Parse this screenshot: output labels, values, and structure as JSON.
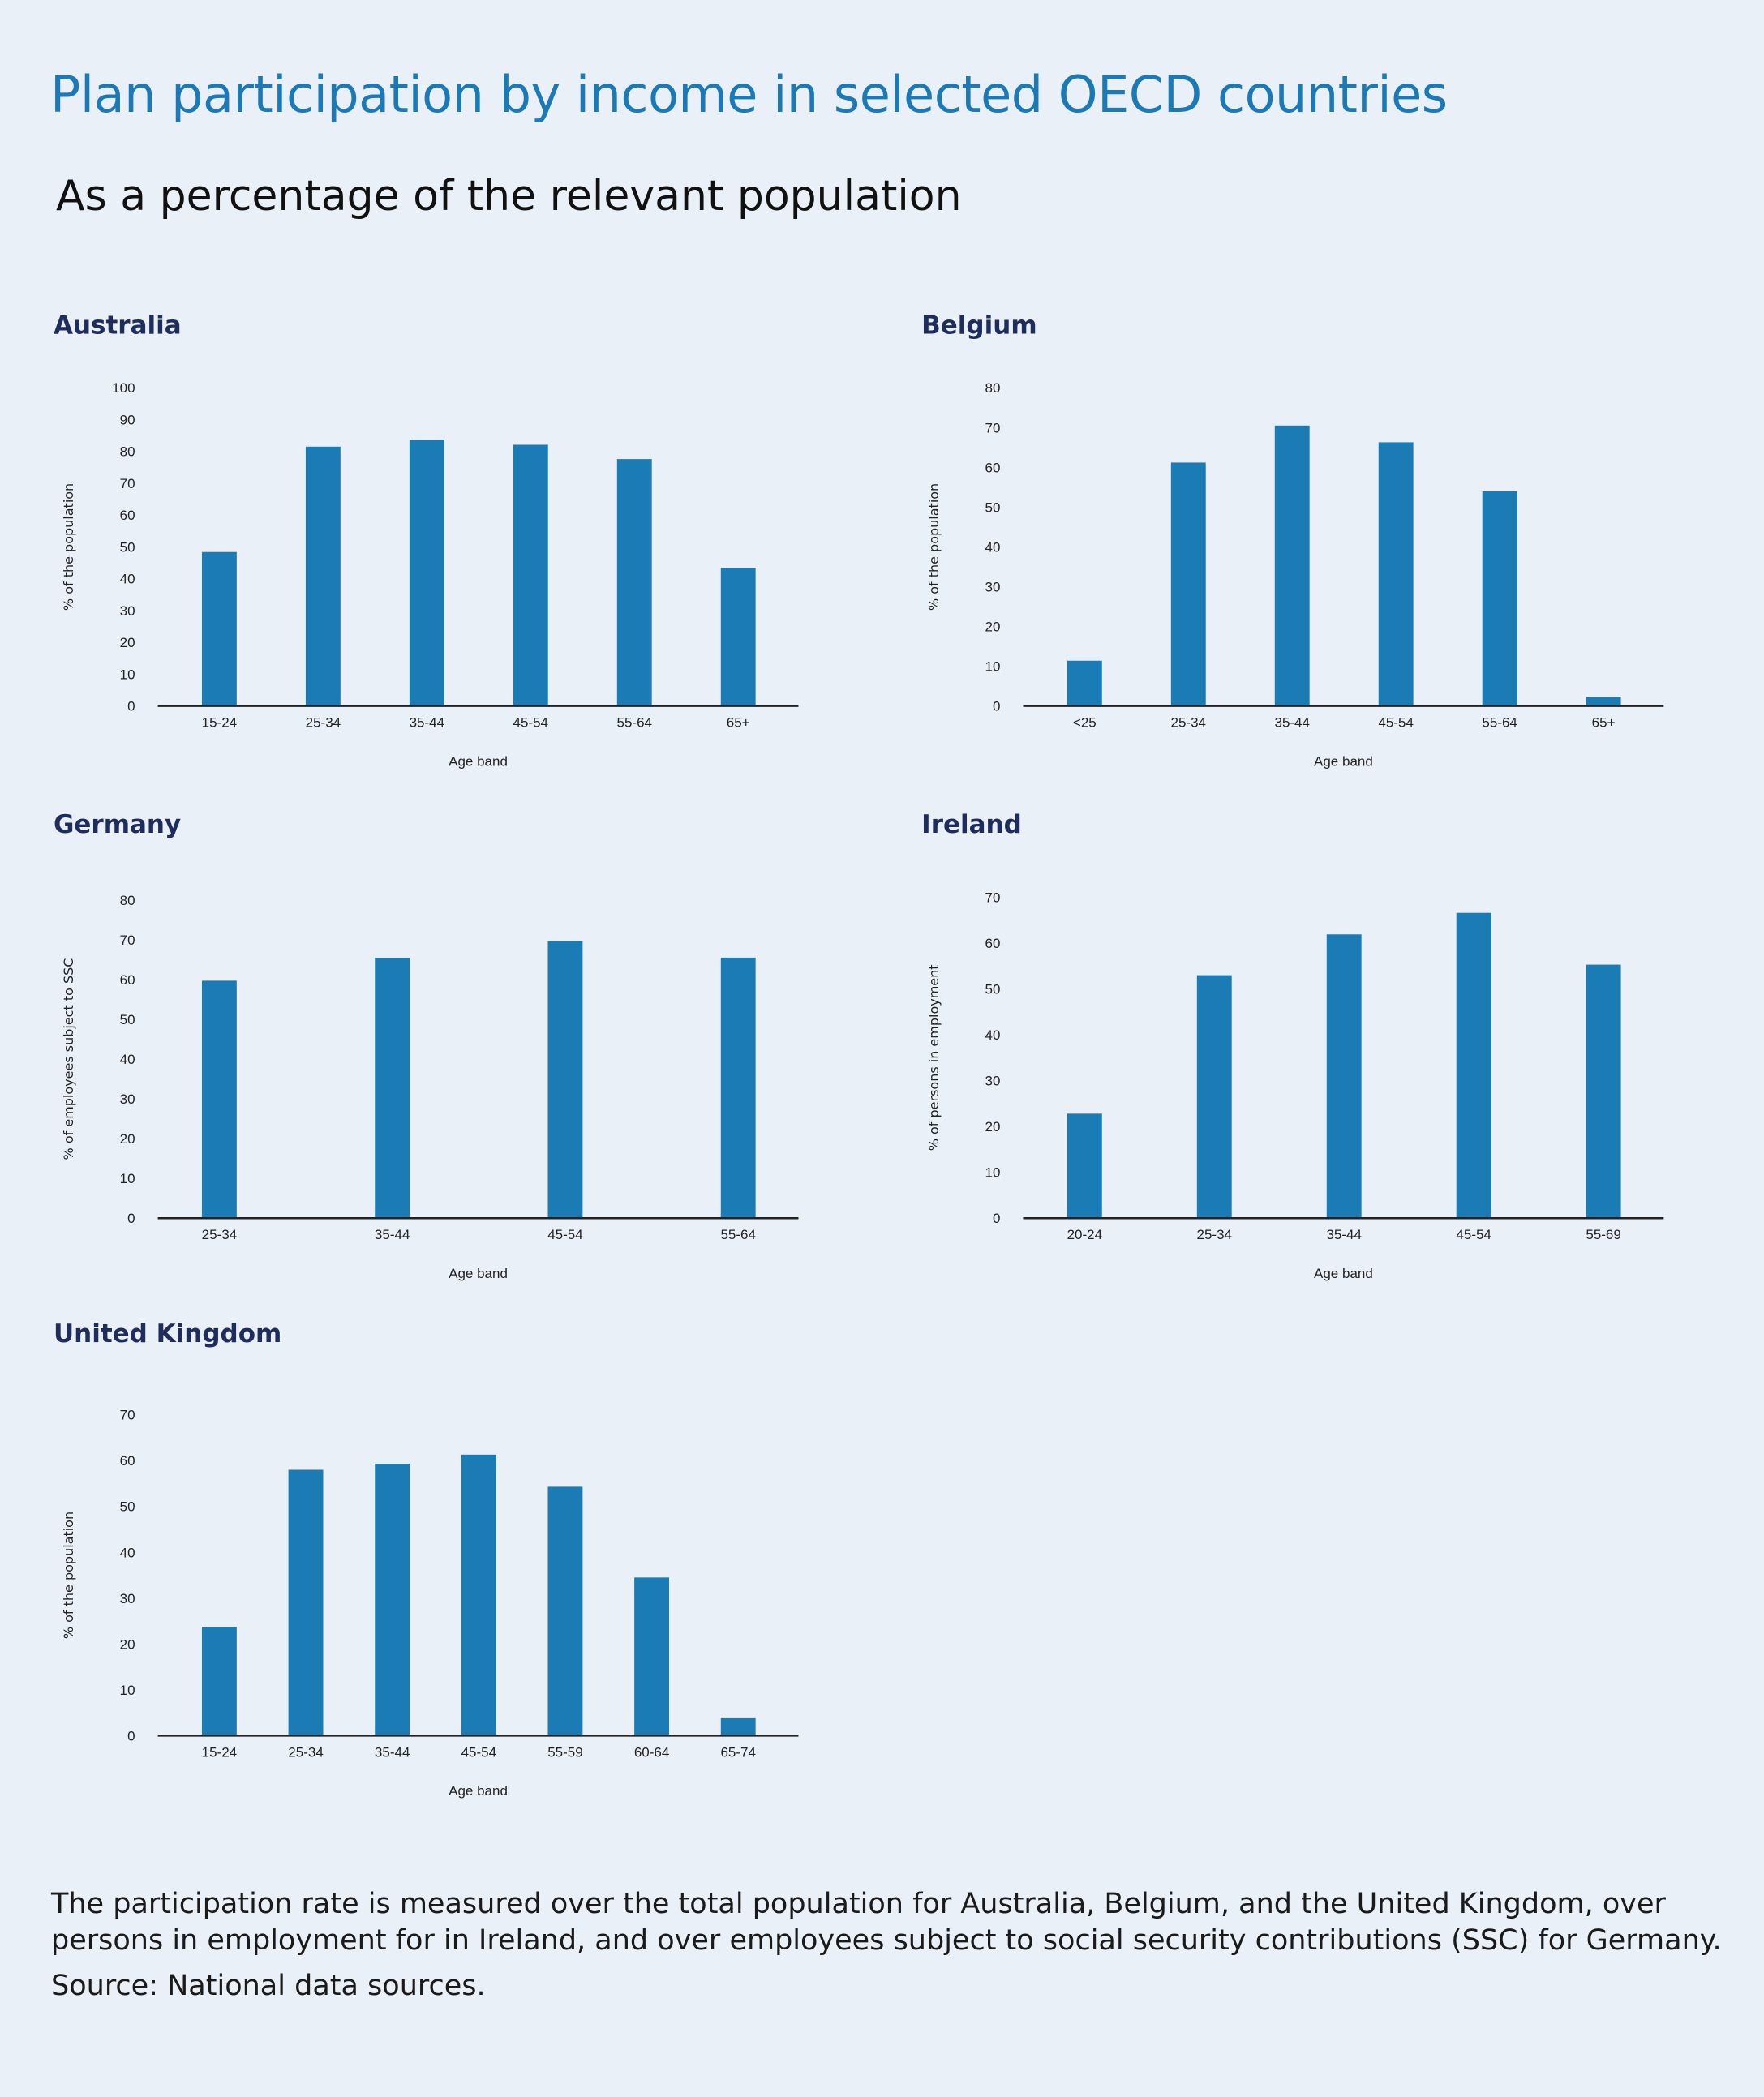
{
  "title": "Plan participation by income in selected OECD countries",
  "subtitle": "As a percentage of the relevant population",
  "colors": {
    "bar": "#1a7bb5",
    "title": "#1b7ab6",
    "heading": "#1f2d5c",
    "background": "#eaf0f8",
    "axis": "#222222"
  },
  "chart_data": [
    {
      "type": "bar",
      "title": "Australia",
      "xlabel": "Age band",
      "ylabel": "% of the population",
      "categories": [
        "15-24",
        "25-34",
        "35-44",
        "45-54",
        "55-64",
        "65+"
      ],
      "values": [
        48.4,
        81.5,
        83.6,
        82.1,
        77.6,
        43.4
      ],
      "ylim": [
        0,
        100
      ],
      "yticks": [
        "0",
        "10",
        "20",
        "30",
        "40",
        "50",
        "60",
        "70",
        "80",
        "90",
        "100"
      ],
      "grid": false
    },
    {
      "type": "bar",
      "title": "Belgium",
      "xlabel": "Age band",
      "ylabel": "% of the population",
      "categories": [
        "<25",
        "25-34",
        "35-44",
        "45-54",
        "55-64",
        "65+"
      ],
      "values": [
        11.4,
        61.2,
        70.5,
        66.3,
        54.0,
        2.3
      ],
      "ylim": [
        0,
        80
      ],
      "yticks": [
        "0",
        "10",
        "20",
        "30",
        "40",
        "50",
        "60",
        "70",
        "80"
      ],
      "grid": false
    },
    {
      "type": "bar",
      "title": "Germany",
      "xlabel": "Age band",
      "ylabel": "% of employees subject to SSC",
      "categories": [
        "25-34",
        "35-44",
        "45-54",
        "55-64"
      ],
      "values": [
        59.7,
        65.4,
        69.7,
        65.5
      ],
      "ylim": [
        0,
        80
      ],
      "yticks": [
        "0",
        "10",
        "20",
        "30",
        "40",
        "50",
        "60",
        "70",
        "80"
      ],
      "grid": false
    },
    {
      "type": "bar",
      "title": "Ireland",
      "xlabel": "Age band",
      "ylabel": "% of persons in employment",
      "categories": [
        "20-24",
        "25-34",
        "35-44",
        "45-54",
        "55-69"
      ],
      "values": [
        22.8,
        53.0,
        61.9,
        66.6,
        55.3
      ],
      "ylim": [
        0,
        70
      ],
      "yticks": [
        "0",
        "10",
        "20",
        "30",
        "40",
        "50",
        "60",
        "70"
      ],
      "grid": false
    },
    {
      "type": "bar",
      "title": "United Kingdom",
      "xlabel": "Age band",
      "ylabel": "% of the population",
      "categories": [
        "15-24",
        "25-34",
        "35-44",
        "45-54",
        "55-59",
        "60-64",
        "65-74"
      ],
      "values": [
        23.7,
        58.0,
        59.3,
        61.3,
        54.3,
        34.5,
        3.8
      ],
      "ylim": [
        0,
        70
      ],
      "yticks": [
        "0",
        "10",
        "20",
        "30",
        "40",
        "50",
        "60",
        "70"
      ],
      "grid": false
    }
  ],
  "footnote": "The participation rate is measured over the total population for Australia, Belgium, and the United Kingdom, over persons in employment for in Ireland, and over employees subject to social security contributions (SSC) for Germany.",
  "source": "Source: National data sources."
}
